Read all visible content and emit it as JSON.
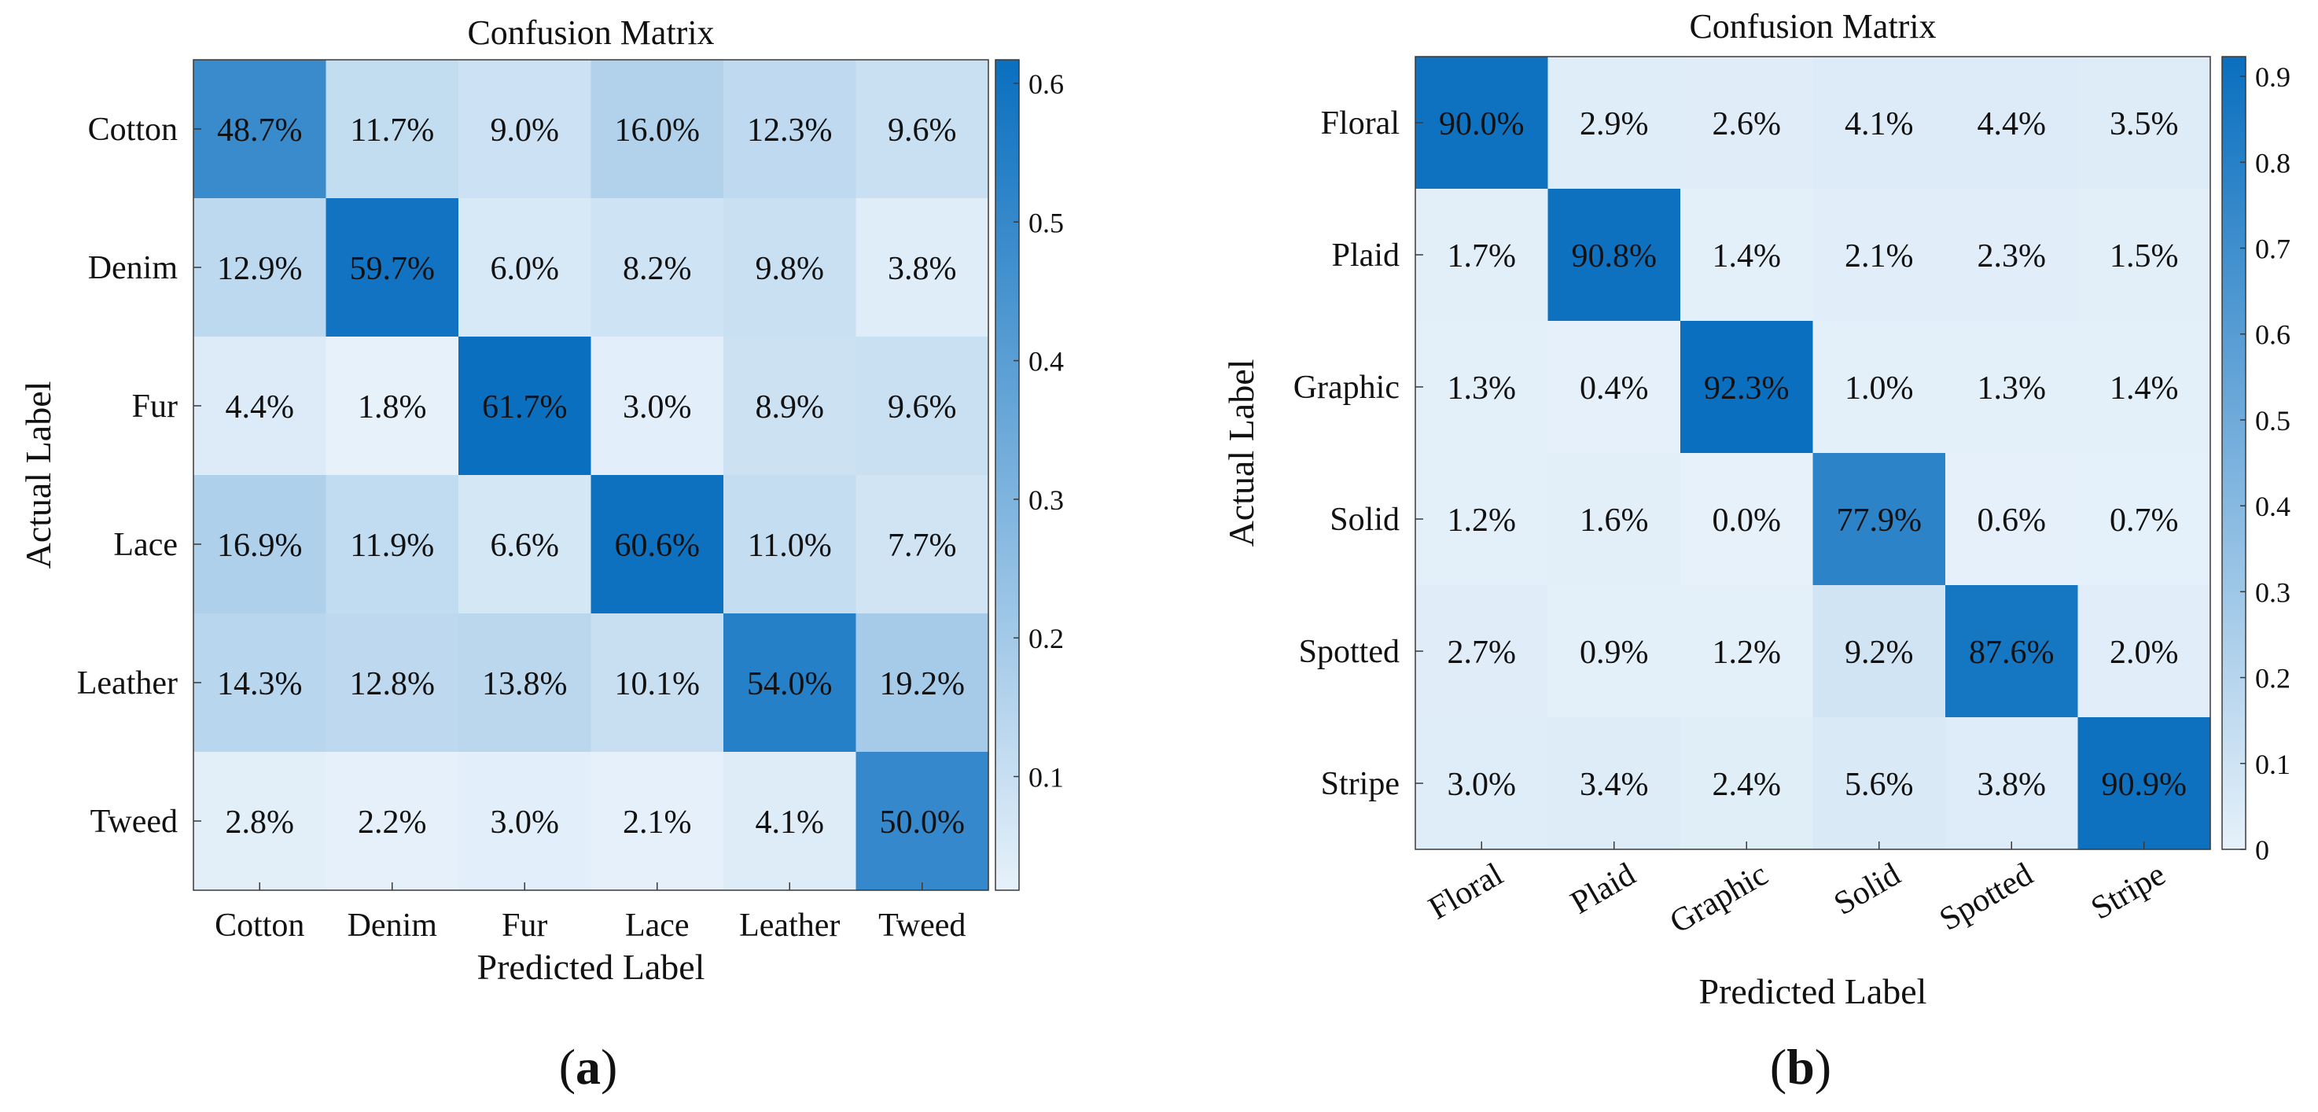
{
  "chart_data": [
    {
      "type": "heatmap",
      "title": "Confusion Matrix",
      "xlabel": "Predicted Label",
      "ylabel": "Actual Label",
      "row_labels": [
        "Cotton",
        "Denim",
        "Fur",
        "Lace",
        "Leather",
        "Tweed"
      ],
      "col_labels": [
        "Cotton",
        "Denim",
        "Fur",
        "Lace",
        "Leather",
        "Tweed"
      ],
      "cell_labels": [
        [
          "48.7%",
          "11.7%",
          "9.0%",
          "16.0%",
          "12.3%",
          "9.6%"
        ],
        [
          "12.9%",
          "59.7%",
          "6.0%",
          "8.2%",
          "9.8%",
          "3.8%"
        ],
        [
          "4.4%",
          "1.8%",
          "61.7%",
          "3.0%",
          "8.9%",
          "9.6%"
        ],
        [
          "16.9%",
          "11.9%",
          "6.6%",
          "60.6%",
          "11.0%",
          "7.7%"
        ],
        [
          "14.3%",
          "12.8%",
          "13.8%",
          "10.1%",
          "54.0%",
          "19.2%"
        ],
        [
          "2.8%",
          "2.2%",
          "3.0%",
          "2.1%",
          "4.1%",
          "50.0%"
        ]
      ],
      "values": [
        [
          0.487,
          0.117,
          0.09,
          0.16,
          0.123,
          0.096
        ],
        [
          0.129,
          0.597,
          0.06,
          0.082,
          0.098,
          0.038
        ],
        [
          0.044,
          0.018,
          0.617,
          0.03,
          0.089,
          0.096
        ],
        [
          0.169,
          0.119,
          0.066,
          0.606,
          0.11,
          0.077
        ],
        [
          0.143,
          0.128,
          0.138,
          0.101,
          0.54,
          0.192
        ],
        [
          0.028,
          0.022,
          0.03,
          0.021,
          0.041,
          0.5
        ]
      ],
      "colorbar": {
        "range": [
          0.018,
          0.617
        ],
        "ticks": [
          0.1,
          0.2,
          0.3,
          0.4,
          0.5,
          0.6
        ]
      },
      "rotate_xticks": false,
      "panel_label": "a"
    },
    {
      "type": "heatmap",
      "title": "Confusion Matrix",
      "xlabel": "Predicted Label",
      "ylabel": "Actual Label",
      "row_labels": [
        "Floral",
        "Plaid",
        "Graphic",
        "Solid",
        "Spotted",
        "Stripe"
      ],
      "col_labels": [
        "Floral",
        "Plaid",
        "Graphic",
        "Solid",
        "Spotted",
        "Stripe"
      ],
      "cell_labels": [
        [
          "90.0%",
          "2.9%",
          "2.6%",
          "4.1%",
          "4.4%",
          "3.5%"
        ],
        [
          "1.7%",
          "90.8%",
          "1.4%",
          "2.1%",
          "2.3%",
          "1.5%"
        ],
        [
          "1.3%",
          "0.4%",
          "92.3%",
          "1.0%",
          "1.3%",
          "1.4%"
        ],
        [
          "1.2%",
          "1.6%",
          "0.0%",
          "77.9%",
          "0.6%",
          "0.7%"
        ],
        [
          "2.7%",
          "0.9%",
          "1.2%",
          "9.2%",
          "87.6%",
          "2.0%"
        ],
        [
          "3.0%",
          "3.4%",
          "2.4%",
          "5.6%",
          "3.8%",
          "90.9%"
        ]
      ],
      "values": [
        [
          0.9,
          0.029,
          0.026,
          0.041,
          0.044,
          0.035
        ],
        [
          0.017,
          0.908,
          0.014,
          0.021,
          0.023,
          0.015
        ],
        [
          0.013,
          0.004,
          0.923,
          0.01,
          0.013,
          0.014
        ],
        [
          0.012,
          0.016,
          0.0,
          0.779,
          0.006,
          0.007
        ],
        [
          0.027,
          0.009,
          0.012,
          0.092,
          0.876,
          0.02
        ],
        [
          0.03,
          0.034,
          0.024,
          0.056,
          0.038,
          0.909
        ]
      ],
      "colorbar": {
        "range": [
          0.0,
          0.923
        ],
        "ticks": [
          0,
          0.1,
          0.2,
          0.3,
          0.4,
          0.5,
          0.6,
          0.7,
          0.8,
          0.9
        ]
      },
      "rotate_xticks": true,
      "panel_label": "b"
    }
  ],
  "colors": {
    "low": "#e6f1fa",
    "high": "#0a6fbf",
    "axis": "#3a3a3a"
  }
}
